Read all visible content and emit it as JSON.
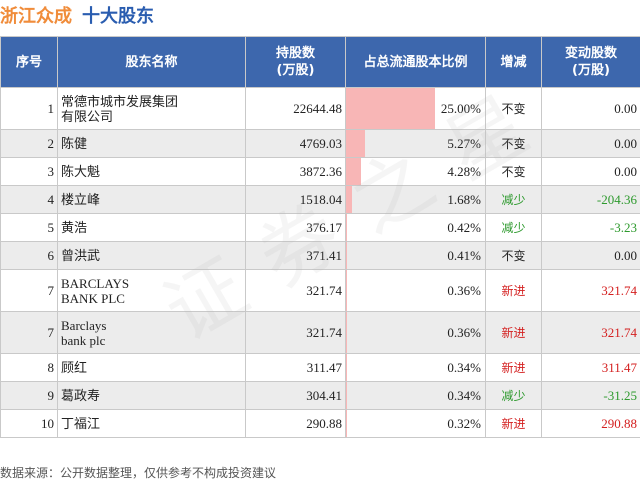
{
  "title": {
    "company": "浙江众成",
    "section": "十大股东"
  },
  "watermark": "证券之星",
  "columns": {
    "index": "序号",
    "name": "股东名称",
    "shares": "持股数\n(万股)",
    "ratio": "占总流通股本比例",
    "trend": "增减",
    "change": "变动股数\n(万股)"
  },
  "rows": [
    {
      "index": "1",
      "name": "常德市城市发展集团\n有限公司",
      "shares": "22644.48",
      "ratio": "25.00%",
      "ratio_value": 25.0,
      "trend": "不变",
      "trend_type": "same",
      "change": "0.00",
      "change_type": "zero"
    },
    {
      "index": "2",
      "name": "陈健",
      "shares": "4769.03",
      "ratio": "5.27%",
      "ratio_value": 5.27,
      "trend": "不变",
      "trend_type": "same",
      "change": "0.00",
      "change_type": "zero"
    },
    {
      "index": "3",
      "name": "陈大魁",
      "shares": "3872.36",
      "ratio": "4.28%",
      "ratio_value": 4.28,
      "trend": "不变",
      "trend_type": "same",
      "change": "0.00",
      "change_type": "zero"
    },
    {
      "index": "4",
      "name": "楼立峰",
      "shares": "1518.04",
      "ratio": "1.68%",
      "ratio_value": 1.68,
      "trend": "减少",
      "trend_type": "down",
      "change": "-204.36",
      "change_type": "neg"
    },
    {
      "index": "5",
      "name": "黄浩",
      "shares": "376.17",
      "ratio": "0.42%",
      "ratio_value": 0.42,
      "trend": "减少",
      "trend_type": "down",
      "change": "-3.23",
      "change_type": "neg"
    },
    {
      "index": "6",
      "name": "曾洪武",
      "shares": "371.41",
      "ratio": "0.41%",
      "ratio_value": 0.41,
      "trend": "不变",
      "trend_type": "same",
      "change": "0.00",
      "change_type": "zero"
    },
    {
      "index": "7",
      "name": "BARCLAYS\nBANK PLC",
      "shares": "321.74",
      "ratio": "0.36%",
      "ratio_value": 0.36,
      "trend": "新进",
      "trend_type": "new",
      "change": "321.74",
      "change_type": "pos"
    },
    {
      "index": "7",
      "name": "Barclays\nbank plc",
      "shares": "321.74",
      "ratio": "0.36%",
      "ratio_value": 0.36,
      "trend": "新进",
      "trend_type": "new",
      "change": "321.74",
      "change_type": "pos"
    },
    {
      "index": "8",
      "name": "顾红",
      "shares": "311.47",
      "ratio": "0.34%",
      "ratio_value": 0.34,
      "trend": "新进",
      "trend_type": "new",
      "change": "311.47",
      "change_type": "pos"
    },
    {
      "index": "9",
      "name": "葛政寿",
      "shares": "304.41",
      "ratio": "0.34%",
      "ratio_value": 0.34,
      "trend": "减少",
      "trend_type": "down",
      "change": "-31.25",
      "change_type": "neg"
    },
    {
      "index": "10",
      "name": "丁福江",
      "shares": "290.88",
      "ratio": "0.32%",
      "ratio_value": 0.32,
      "trend": "新进",
      "trend_type": "new",
      "change": "290.88",
      "change_type": "pos"
    }
  ],
  "footer": "数据来源：公开数据整理，仅供参考不构成投资建议",
  "colors": {
    "header_bg": "#3d67ad",
    "title_company": "#f08c3a",
    "title_section": "#2a5db0",
    "bar": "#f8b6b6",
    "increase": "#d42020",
    "decrease": "#2e9a2e"
  }
}
